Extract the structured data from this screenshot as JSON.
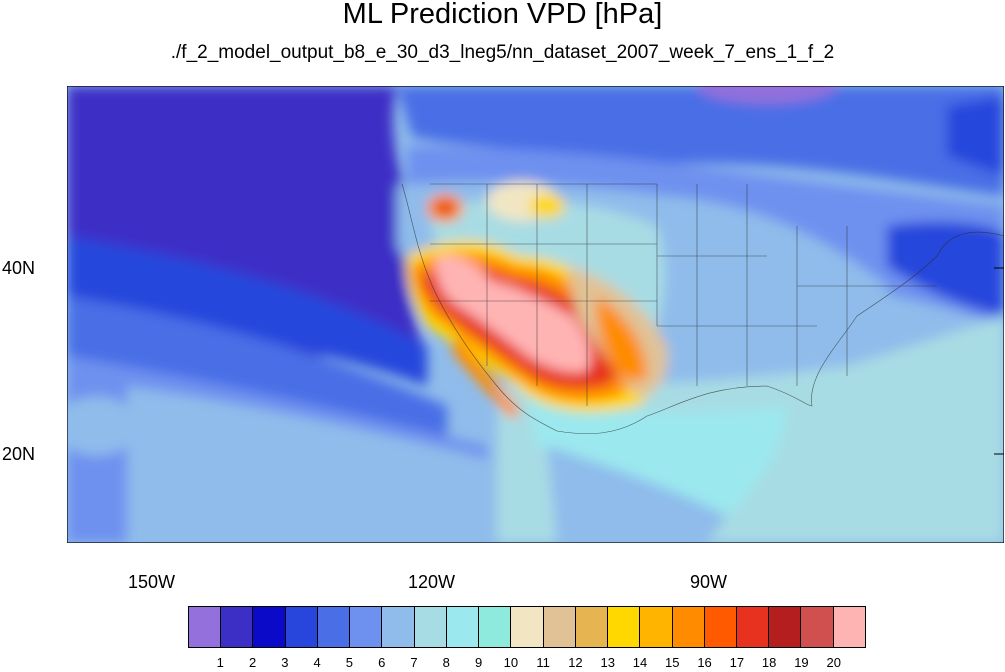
{
  "title": "ML Prediction VPD [hPa]",
  "subtitle": "./f_2_model_output_b8_e_30_d3_lneg5/nn_dataset_2007_week_7_ens_1_f_2",
  "map": {
    "region": "North Pacific / contiguous United States",
    "variable": "VPD",
    "units": "hPa",
    "lon_ticks": [
      "150W",
      "120W",
      "90W"
    ],
    "lat_ticks": [
      "40N",
      "20N"
    ]
  },
  "colorbar": {
    "levels": [
      "1",
      "2",
      "3",
      "4",
      "5",
      "6",
      "7",
      "8",
      "9",
      "10",
      "11",
      "12",
      "13",
      "14",
      "15",
      "16",
      "17",
      "18",
      "19",
      "20"
    ],
    "colors": [
      "#9370db",
      "#3c2fc6",
      "#0a0ac8",
      "#2846dc",
      "#4a6ee6",
      "#6e91ef",
      "#8fbceb",
      "#a8dce4",
      "#9be8ee",
      "#8eeadc",
      "#f2e6c2",
      "#e0c296",
      "#e6b450",
      "#ffd800",
      "#ffb400",
      "#ff8c00",
      "#ff5a00",
      "#e6321e",
      "#b41e1e",
      "#d05050",
      "#ffb4b4"
    ]
  }
}
